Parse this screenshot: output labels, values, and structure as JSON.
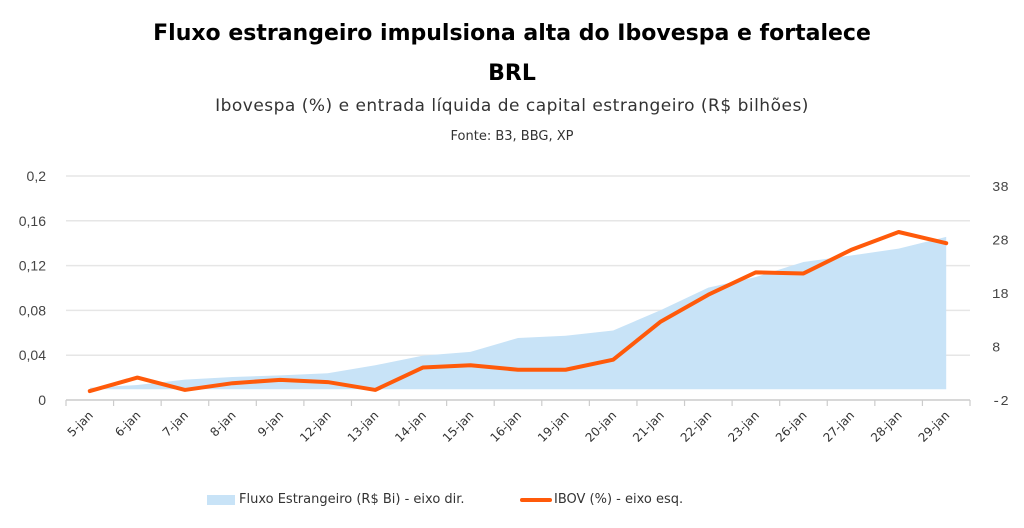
{
  "header": {
    "title_line1": "Fluxo estrangeiro impulsiona alta do Ibovespa e fortalece",
    "title_line2": "BRL",
    "subtitle": "Ibovespa (%) e entrada líquida de capital estrangeiro (R$ bilhões)",
    "source": "Fonte: B3, BBG, XP"
  },
  "colors": {
    "area": "#c8e3f7",
    "line": "#ff5a0a",
    "grid": "#e6e6e6",
    "axis": "#cccccc"
  },
  "chart_data": {
    "type": "line",
    "title": "Fluxo estrangeiro impulsiona alta do Ibovespa e fortalece BRL",
    "subtitle": "Ibovespa (%) e entrada líquida de capital estrangeiro (R$ bilhões)",
    "xlabel": "",
    "ylabel_left": "IBOV (%)",
    "ylabel_right": "Fluxo Estrangeiro (R$ Bi)",
    "categories": [
      "5-jan",
      "6-jan",
      "7-jan",
      "8-jan",
      "9-jan",
      "12-jan",
      "13-jan",
      "14-jan",
      "15-jan",
      "16-jan",
      "19-jan",
      "20-jan",
      "21-jan",
      "22-jan",
      "23-jan",
      "26-jan",
      "27-jan",
      "28-jan",
      "29-jan"
    ],
    "series": [
      {
        "name": "Fluxo Estrangeiro (R$ Bi) - eixo dir.",
        "type": "area",
        "axis": "right",
        "values": [
          0.3,
          0.8,
          1.8,
          2.3,
          2.6,
          3.0,
          4.5,
          6.3,
          7.0,
          9.6,
          10.0,
          11.0,
          14.8,
          19.0,
          21.0,
          23.8,
          25.0,
          26.3,
          28.5
        ]
      },
      {
        "name": "IBOV (%) - eixo esq.",
        "type": "line",
        "axis": "left",
        "values": [
          0.008,
          0.02,
          0.009,
          0.015,
          0.018,
          0.016,
          0.009,
          0.029,
          0.031,
          0.027,
          0.027,
          0.036,
          0.07,
          0.094,
          0.114,
          0.113,
          0.134,
          0.15,
          0.14
        ]
      }
    ],
    "y_left": {
      "range": [
        0,
        0.2
      ],
      "ticks": [
        "0",
        "0,04",
        "0,08",
        "0,12",
        "0,16",
        "0,2"
      ],
      "tick_values": [
        0,
        0.04,
        0.08,
        0.12,
        0.16,
        0.2
      ]
    },
    "y_right": {
      "range": [
        -2,
        38
      ],
      "ticks": [
        "-2",
        "8",
        "18",
        "28",
        "38"
      ],
      "tick_values": [
        -2,
        8,
        18,
        28,
        38
      ],
      "area_baseline": 0
    },
    "grid": true,
    "legend_position": "bottom"
  },
  "legend": {
    "area_label": "Fluxo Estrangeiro (R$ Bi) - eixo dir.",
    "line_label": "IBOV (%) - eixo esq."
  }
}
